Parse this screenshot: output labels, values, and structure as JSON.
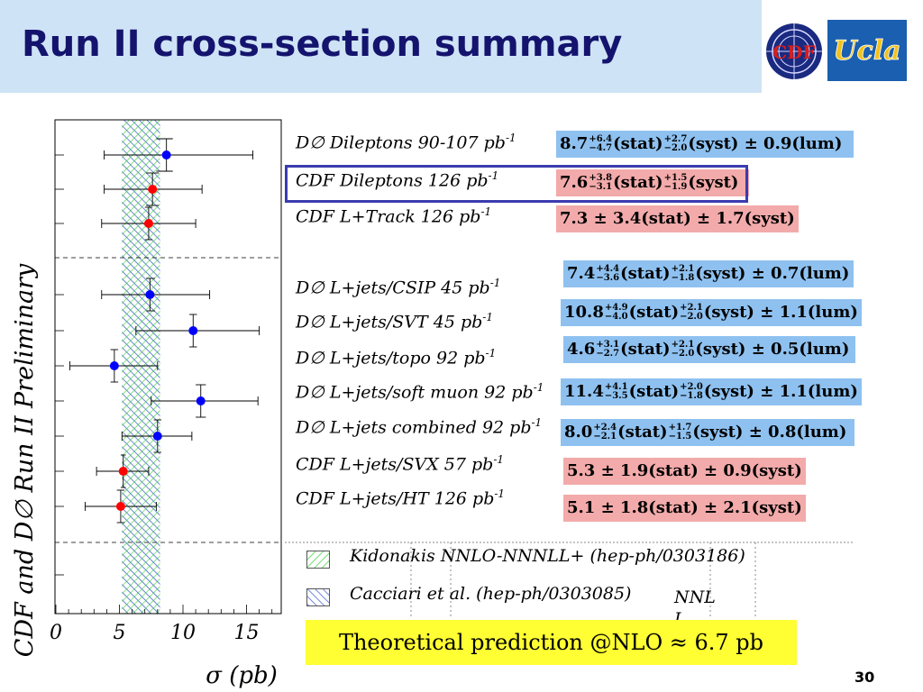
{
  "slide": {
    "title": "Run II cross-section summary",
    "page_number": "30",
    "prediction": "Theoretical prediction @NLO ≈ 6.7 pb",
    "nnl_note": "NNL\nL",
    "cdf_logo_text": "CDF",
    "ucla_logo_text": "Ucla"
  },
  "colors": {
    "title_band": "#cfe3f6",
    "title_text": "#14146e",
    "d0_marker": "#0000ff",
    "cdf_marker": "#ff0000",
    "blue_box": "#8ec1f0",
    "red_box": "#f3aaaa",
    "prediction_box": "#ffff33",
    "highlight_frame": "#3b3bb0"
  },
  "chart_data": {
    "type": "scatter",
    "ylabel": "CDF and D∅ Run II Preliminary",
    "xlabel": "σ (pb)",
    "xlim": [
      0,
      17
    ],
    "x_ticks": [
      "0",
      "5",
      "10",
      "15"
    ],
    "theory_band": [
      5.2,
      8.2
    ],
    "points": [
      {
        "label": "D∅  Dileptons 90-107 pb",
        "exp": "-1",
        "experiment": "D0",
        "value": 8.7,
        "err_stat": [
          7.9,
          9.2
        ],
        "err_tot": [
          3.8,
          15.5
        ],
        "result_text": {
          "central": "8.7",
          "stat_up": "+6.4",
          "stat_dn": "−4.7",
          "syst_up": "+2.7",
          "syst_dn": "−2.0",
          "lum": "± 0.9(lum)"
        }
      },
      {
        "label": "CDF Dileptons 126 pb",
        "exp": "-1",
        "experiment": "CDF",
        "value": 7.6,
        "err_stat": [
          7.1,
          8.1
        ],
        "err_tot": [
          3.8,
          11.5
        ],
        "result_text": {
          "central": "7.6",
          "stat_up": "+3.8",
          "stat_dn": "−3.1",
          "syst_up": "+1.5",
          "syst_dn": "−1.9",
          "lum": ""
        }
      },
      {
        "label": "CDF L+Track 126 pb",
        "exp": "-1",
        "experiment": "CDF",
        "value": 7.3,
        "err_stat": [
          7.0,
          7.6
        ],
        "err_tot": [
          3.6,
          11.0
        ],
        "result_text": {
          "flat": "7.3 ± 3.4(stat) ± 1.7(syst)"
        }
      },
      {
        "label": "D∅  L+jets/CSIP 45 pb",
        "exp": "-1",
        "experiment": "D0",
        "value": 7.4,
        "err_stat": [
          7.1,
          7.8
        ],
        "err_tot": [
          3.6,
          12.1
        ],
        "result_text": {
          "central": "7.4",
          "stat_up": "+4.4",
          "stat_dn": "−3.6",
          "syst_up": "+2.1",
          "syst_dn": "−1.8",
          "lum": "± 0.7(lum)"
        }
      },
      {
        "label": "D∅  L+jets/SVT 45 pb",
        "exp": "-1",
        "experiment": "D0",
        "value": 10.8,
        "err_stat": [
          10.5,
          11.1
        ],
        "err_tot": [
          6.3,
          16.0
        ],
        "result_text": {
          "central": "10.8",
          "stat_up": "+4.9",
          "stat_dn": "−4.0",
          "syst_up": "+2.1",
          "syst_dn": "−2.0",
          "lum": "± 1.1(lum)"
        }
      },
      {
        "label": "D∅  L+jets/topo 92 pb",
        "exp": "-1",
        "experiment": "D0",
        "value": 4.6,
        "err_stat": [
          4.3,
          4.9
        ],
        "err_tot": [
          1.1,
          8.0
        ],
        "result_text": {
          "central": "4.6",
          "stat_up": "+3.1",
          "stat_dn": "−2.7",
          "syst_up": "+2.1",
          "syst_dn": "−2.0",
          "lum": "± 0.5(lum)"
        }
      },
      {
        "label": "D∅ L+jets/soft muon 92 pb",
        "exp": "-1",
        "experiment": "D0",
        "value": 11.4,
        "err_stat": [
          11.0,
          11.8
        ],
        "err_tot": [
          7.5,
          15.9
        ],
        "result_text": {
          "central": "11.4",
          "stat_up": "+4.1",
          "stat_dn": "−3.5",
          "syst_up": "+2.0",
          "syst_dn": "−1.8",
          "lum": "± 1.1(lum)"
        }
      },
      {
        "label": "D∅ L+jets combined 92 pb",
        "exp": "-1",
        "experiment": "D0",
        "value": 8.0,
        "err_stat": [
          7.7,
          8.3
        ],
        "err_tot": [
          5.2,
          10.7
        ],
        "result_text": {
          "central": "8.0",
          "stat_up": "+2.4",
          "stat_dn": "−2.1",
          "syst_up": "+1.7",
          "syst_dn": "−1.5",
          "lum": "± 0.8(lum)"
        }
      },
      {
        "label": "CDF L+jets/SVX 57 pb",
        "exp": "-1",
        "experiment": "CDF",
        "value": 5.3,
        "err_stat": [
          5.1,
          5.5
        ],
        "err_tot": [
          3.2,
          7.3
        ],
        "result_text": {
          "flat": "5.3 ± 1.9(stat) ± 0.9(syst)"
        }
      },
      {
        "label": "CDF L+jets/HT 126 pb",
        "exp": "-1",
        "experiment": "CDF",
        "value": 5.1,
        "err_stat": [
          4.8,
          5.4
        ],
        "err_tot": [
          2.3,
          7.9
        ],
        "result_text": {
          "flat": "5.1 ± 1.8(stat) ± 2.1(syst)"
        }
      }
    ],
    "legend": [
      {
        "name": "Kidonakis NNLO-NNNLL+ (hep-ph/0303186)",
        "color": "#33cc33"
      },
      {
        "name": "Cacciari et al. (hep-ph/0303085)",
        "color": "#3355cc"
      }
    ]
  }
}
